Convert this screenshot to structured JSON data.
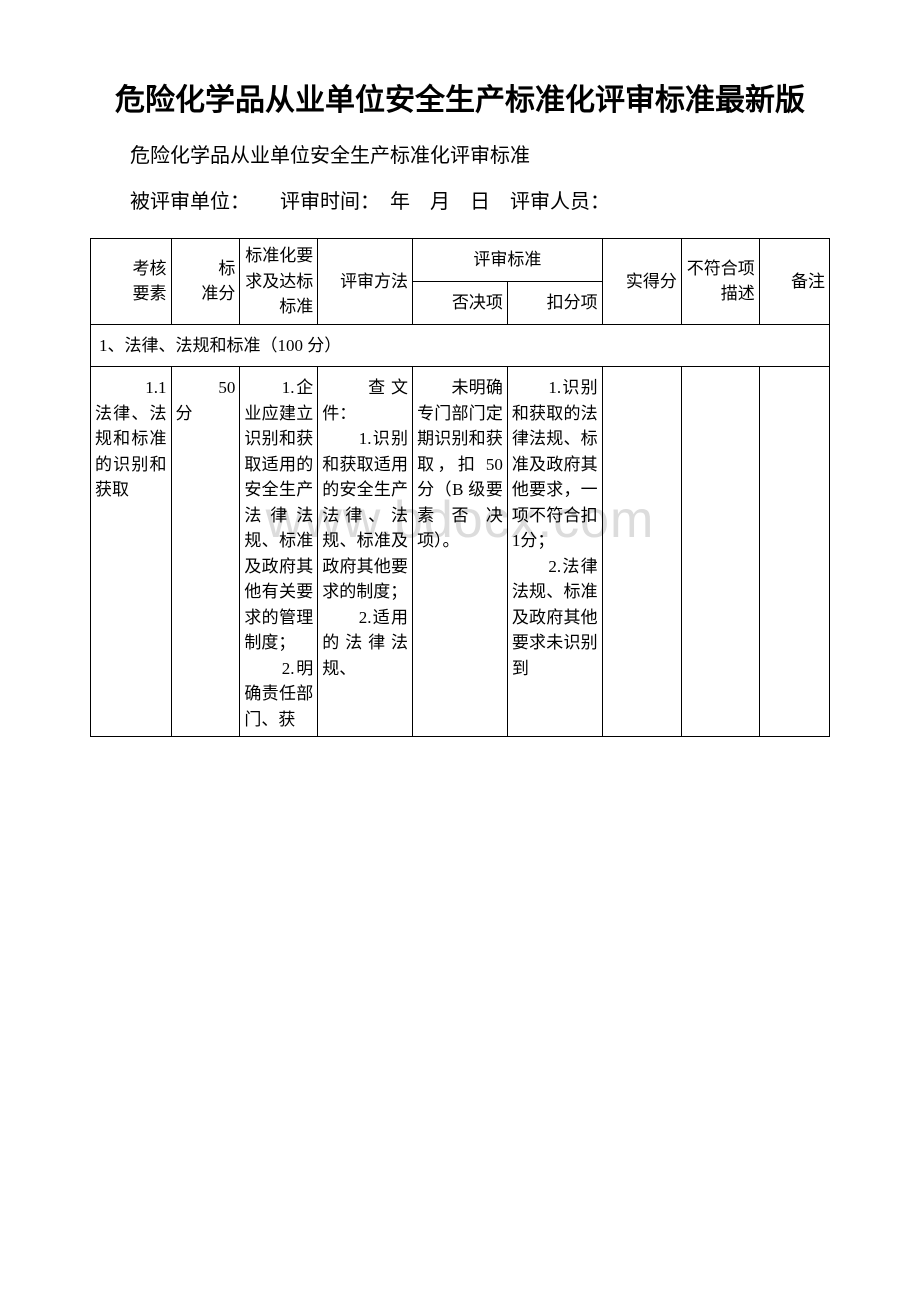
{
  "watermark": "www.bdocx.com",
  "title": "危险化学品从业单位安全生产标准化评审标准最新版",
  "subtitle": "危险化学品从业单位安全生产标准化评审标准",
  "info_line": "被评审单位：　　评审时间：　年　月　日　评审人员：",
  "headers": {
    "col1": "考核　　要素",
    "col2": "标　　准分",
    "col3": "标准化要求及达标标准",
    "col4": "评审方法",
    "col5_group": "评审标准",
    "col5": "否决项",
    "col6": "扣分项",
    "col7": "实得分",
    "col8": "不符合项描述",
    "col9": "备注"
  },
  "section_header": "1、法律、法规和标准（100 分）",
  "row1": {
    "element": "　　1.1 法律、法规和标准的识别和获取",
    "score": "　　50 分",
    "requirement": "　　1.企业应建立识别和获取适用的安全生产法律法规、标准及政府其他有关要求的管理制度；\n　　2.明确责任部门、获",
    "method": "　　查文件：\n　　1.识别和获取适用的安全生产法律、法规、标准及政府其他要求的制度；\n　　2.适用的法律法规、",
    "veto": "　　未明确专门部门定期识别和获取，扣 50分（B 级要素否决项）。",
    "deduct": "　　1.识别和获取的法律法规、标准及政府其他要求，一项不符合扣 1分；\n　　2.法律法规、标准及政府其他要求未识别到",
    "actual": "",
    "noncomply": "",
    "remark": ""
  },
  "colors": {
    "background": "#ffffff",
    "text": "#000000",
    "border": "#000000",
    "watermark": "#dcdcdc"
  }
}
